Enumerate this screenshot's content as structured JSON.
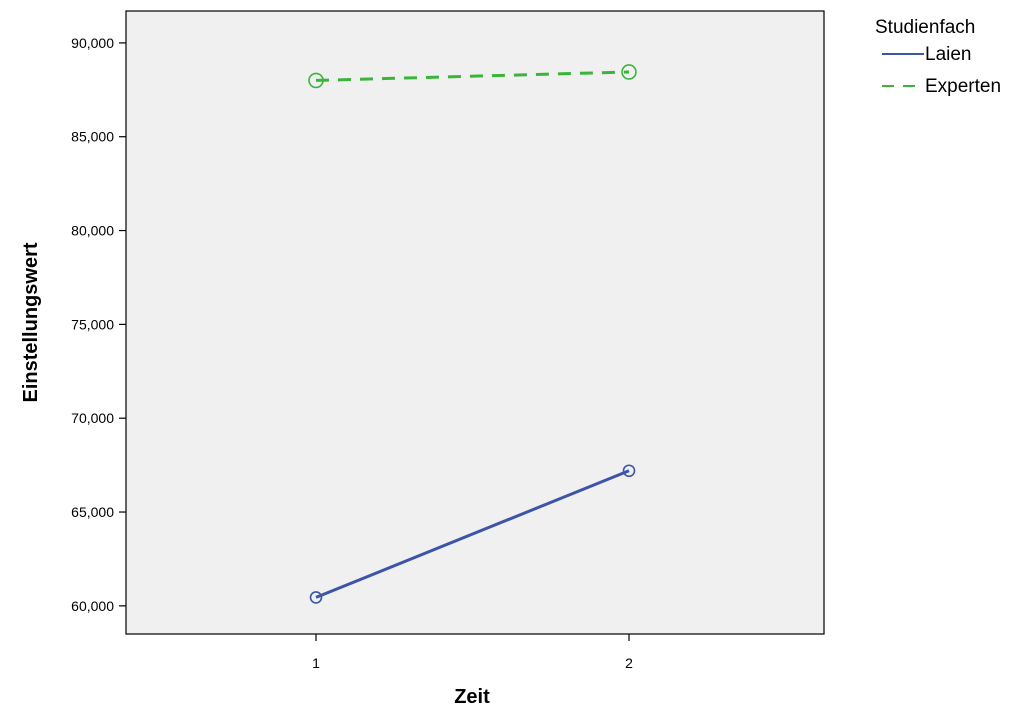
{
  "chart_data": {
    "type": "line",
    "xlabel": "Zeit",
    "ylabel": "Einstellungswert",
    "categories": [
      "1",
      "2"
    ],
    "ylim": [
      58.5,
      91.7
    ],
    "yticks": [
      60,
      65,
      70,
      75,
      80,
      85,
      90
    ],
    "ytick_labels": [
      "60,000",
      "65,000",
      "70,000",
      "75,000",
      "80,000",
      "85,000",
      "90,000"
    ],
    "grid": false,
    "legend": {
      "title": "Studienfach",
      "placement": "top-right, outside plot"
    },
    "series": [
      {
        "name": "Laien",
        "values": [
          60.45,
          67.2
        ],
        "color": "#3c55a8",
        "line_style": "solid",
        "marker": "open-circle"
      },
      {
        "name": "Experten",
        "values": [
          88.0,
          88.45
        ],
        "color": "#3cb43c",
        "line_style": "dashed",
        "marker": "open-circle"
      }
    ],
    "colors": {
      "plot_background": "#f0f0f0",
      "axis": "#000000"
    }
  }
}
